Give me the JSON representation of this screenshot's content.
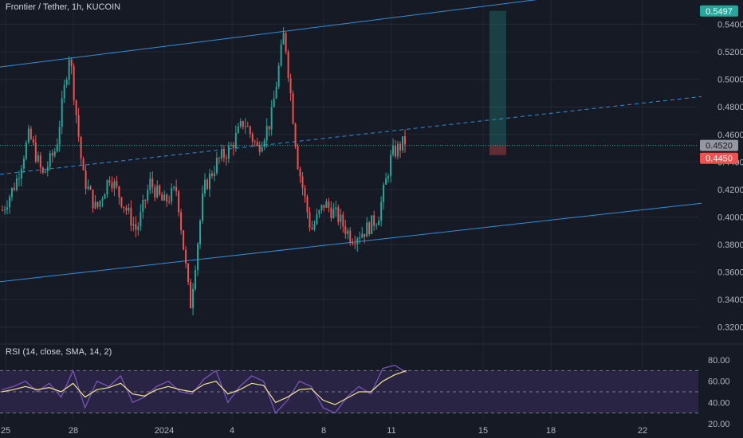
{
  "header": {
    "title": "Frontier / Tether, 1h, KUCOIN",
    "rsi_title": "RSI (14, close, SMA, 14, 2)"
  },
  "colors": {
    "background": "#161a25",
    "grid": "#232734",
    "up": "#26a69a",
    "down": "#ef5350",
    "channel": "#2f8fd6",
    "rsi": "#7e57c2",
    "rsi_ma": "#f0e68c",
    "rsi_band": "#2a2444",
    "badge_green": "#26a69a",
    "badge_red": "#ef5350",
    "badge_gray": "#9598a1"
  },
  "chart_data": [
    {
      "type": "candlestick",
      "title": "Frontier / Tether, 1h, KUCOIN",
      "y_axis_ticks": [
        "0.5400",
        "0.5200",
        "0.5000",
        "0.4800",
        "0.4600",
        "0.4400",
        "0.4200",
        "0.4000",
        "0.3800",
        "0.3600",
        "0.3400",
        "0.3200"
      ],
      "ylim": [
        0.31,
        0.555
      ],
      "x_axis_ticks": [
        "25",
        "28",
        "2024",
        "4",
        "8",
        "11",
        "15",
        "18",
        "22"
      ],
      "price_badges": {
        "target": "0.5497",
        "current": "0.4520",
        "stop": "0.4450"
      },
      "price_points": [
        [
          "25",
          0.405
        ],
        [
          "26",
          0.425
        ],
        [
          "26.5",
          0.46
        ],
        [
          "27",
          0.43
        ],
        [
          "28",
          0.45
        ],
        [
          "28.2",
          0.52
        ],
        [
          "28.5",
          0.43
        ],
        [
          "29",
          0.405
        ],
        [
          "30",
          0.43
        ],
        [
          "31",
          0.41
        ],
        [
          "2024",
          0.39
        ],
        [
          "1.5",
          0.425
        ],
        [
          "2",
          0.41
        ],
        [
          "3",
          0.42
        ],
        [
          "3.5",
          0.335
        ],
        [
          "4",
          0.42
        ],
        [
          "4.5",
          0.44
        ],
        [
          "5",
          0.45
        ],
        [
          "6",
          0.47
        ],
        [
          "6.5",
          0.45
        ],
        [
          "7",
          0.47
        ],
        [
          "7.5",
          0.535
        ],
        [
          "7.8",
          0.44
        ],
        [
          "8",
          0.39
        ],
        [
          "8.5",
          0.41
        ],
        [
          "9",
          0.4
        ],
        [
          "9.5",
          0.385
        ],
        [
          "10",
          0.39
        ],
        [
          "10.5",
          0.4
        ],
        [
          "11",
          0.445
        ],
        [
          "11.5",
          0.455
        ]
      ],
      "channel": {
        "upper_start": 0.509,
        "upper_end": 0.565,
        "lower_start": 0.353,
        "lower_end": 0.41
      }
    },
    {
      "type": "line",
      "title": "RSI (14, close, SMA, 14, 2)",
      "y_axis_ticks": [
        "80.00",
        "60.00",
        "40.00",
        "20.00"
      ],
      "ylim": [
        20,
        80
      ],
      "bands": [
        70,
        50,
        30
      ],
      "series": [
        {
          "values": [
            52,
            55,
            60,
            50,
            58,
            45,
            70,
            35,
            60,
            55,
            65,
            40,
            45,
            55,
            60,
            50,
            48,
            62,
            70,
            40,
            55,
            65,
            60,
            30,
            42,
            60,
            55,
            35,
            30,
            45,
            55,
            48,
            72,
            75,
            68
          ]
        },
        {
          "values": [
            50,
            52,
            55,
            52,
            54,
            50,
            58,
            45,
            52,
            54,
            58,
            48,
            46,
            52,
            55,
            52,
            50,
            57,
            60,
            48,
            52,
            58,
            56,
            40,
            45,
            52,
            53,
            42,
            38,
            44,
            50,
            50,
            60,
            66,
            70
          ]
        }
      ]
    }
  ]
}
